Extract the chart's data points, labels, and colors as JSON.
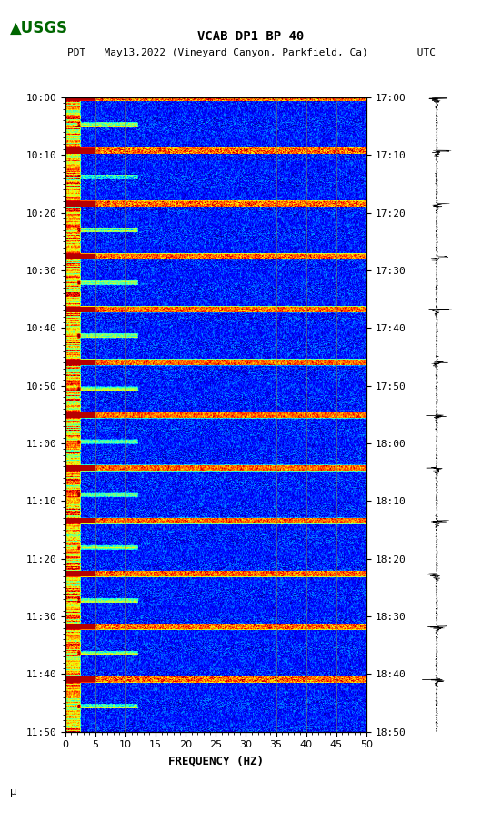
{
  "title_line1": "VCAB DP1 BP 40",
  "title_line2": "PDT   May13,2022 (Vineyard Canyon, Parkfield, Ca)        UTC",
  "xlabel": "FREQUENCY (HZ)",
  "freq_min": 0,
  "freq_max": 50,
  "freq_ticks": [
    0,
    5,
    10,
    15,
    20,
    25,
    30,
    35,
    40,
    45,
    50
  ],
  "time_left_labels": [
    "10:00",
    "10:10",
    "10:20",
    "10:30",
    "10:40",
    "10:50",
    "11:00",
    "11:10",
    "11:20",
    "11:30",
    "11:40",
    "11:50"
  ],
  "time_right_labels": [
    "17:00",
    "17:10",
    "17:20",
    "17:30",
    "17:40",
    "17:50",
    "18:00",
    "18:10",
    "18:20",
    "18:30",
    "18:40",
    "18:50"
  ],
  "bg_color": "white",
  "spectrogram_bg": "#00008B",
  "grid_color": "#888844",
  "n_time_steps": 720,
  "n_freq_steps": 500
}
